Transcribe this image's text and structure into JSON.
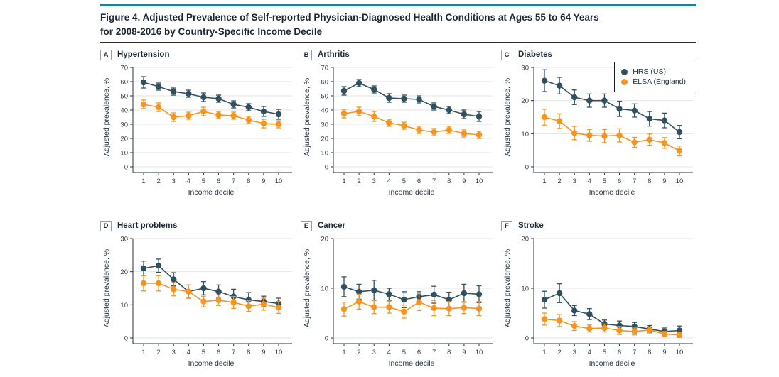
{
  "figure": {
    "title_line1": "Figure 4. Adjusted Prevalence of Self-reported Physician-Diagnosed Health Conditions at Ages 55 to 64 Years",
    "title_line2": "for 2008-2016 by Country-Specific Income Decile"
  },
  "colors": {
    "accent_bar": "#1b7e9e",
    "hrs": "#31505e",
    "elsa": "#f6941f",
    "gridline": "#e4e4e4",
    "axis": "#27323c"
  },
  "legend": {
    "items": [
      {
        "label": "HRS (US)",
        "color": "#31505e"
      },
      {
        "label": "ELSA (England)",
        "color": "#f6941f"
      }
    ]
  },
  "chart_data": [
    {
      "panel": "A",
      "type": "line",
      "title": "Hypertension",
      "xlabel": "Income decile",
      "ylabel": "Adjusted prevalence, %",
      "categories": [
        1,
        2,
        3,
        4,
        5,
        6,
        7,
        8,
        9,
        10
      ],
      "ylim": [
        0,
        70
      ],
      "ytick": 10,
      "grid": true,
      "series": [
        {
          "name": "HRS (US)",
          "color": "#31505e",
          "values": [
            59.5,
            56.5,
            53,
            51.5,
            49,
            48,
            44,
            42,
            39,
            37
          ],
          "errors": [
            4,
            2.5,
            2.5,
            2.5,
            3,
            2.5,
            2.5,
            2.5,
            3.5,
            3.5
          ]
        },
        {
          "name": "ELSA (England)",
          "color": "#f6941f",
          "values": [
            44,
            42,
            35,
            36,
            39,
            36.5,
            36,
            33,
            30.5,
            30
          ],
          "errors": [
            3,
            3,
            3,
            2.5,
            3,
            2.5,
            2.5,
            2.5,
            3,
            2.5
          ]
        }
      ]
    },
    {
      "panel": "B",
      "type": "line",
      "title": "Arthritis",
      "xlabel": "Income decile",
      "ylabel": "Adjusted prevalence, %",
      "categories": [
        1,
        2,
        3,
        4,
        5,
        6,
        7,
        8,
        9,
        10
      ],
      "ylim": [
        0,
        70
      ],
      "ytick": 10,
      "grid": true,
      "series": [
        {
          "name": "HRS (US)",
          "color": "#31505e",
          "values": [
            53.5,
            59,
            54.5,
            48.5,
            48,
            47.5,
            42.5,
            40,
            37,
            35.5
          ],
          "errors": [
            3,
            2.5,
            2.5,
            3,
            2.5,
            2.5,
            2.5,
            2.5,
            3,
            3.5
          ]
        },
        {
          "name": "ELSA (England)",
          "color": "#f6941f",
          "values": [
            37.5,
            39,
            35.5,
            31,
            29,
            26,
            24.5,
            26,
            23.5,
            22.5
          ],
          "errors": [
            3,
            3,
            3.5,
            2.5,
            2.5,
            2.5,
            2.5,
            2.5,
            2.5,
            2.5
          ]
        }
      ]
    },
    {
      "panel": "C",
      "type": "line",
      "title": "Diabetes",
      "xlabel": "Income decile",
      "ylabel": "Adjusted prevalence, %",
      "categories": [
        1,
        2,
        3,
        4,
        5,
        6,
        7,
        8,
        9,
        10
      ],
      "ylim": [
        0,
        30
      ],
      "ytick": 10,
      "grid": true,
      "legend_position": "top-right",
      "series": [
        {
          "name": "HRS (US)",
          "color": "#31505e",
          "values": [
            26,
            24.5,
            21,
            20,
            20,
            17.5,
            17,
            14.5,
            14,
            10.5
          ],
          "errors": [
            3.3,
            2.5,
            2.2,
            2,
            2,
            2.3,
            2,
            2.2,
            2.2,
            2
          ]
        },
        {
          "name": "ELSA (England)",
          "color": "#f6941f",
          "values": [
            15,
            13.8,
            10.2,
            9.5,
            9.3,
            9.5,
            7.4,
            8.2,
            7.2,
            4.8
          ],
          "errors": [
            2.4,
            2.2,
            2,
            1.8,
            2,
            2,
            1.5,
            1.7,
            1.6,
            1.5
          ]
        }
      ]
    },
    {
      "panel": "D",
      "type": "line",
      "title": "Heart problems",
      "xlabel": "Income decile",
      "ylabel": "Adjusted prevalence, %",
      "categories": [
        1,
        2,
        3,
        4,
        5,
        6,
        7,
        8,
        9,
        10
      ],
      "ylim": [
        0,
        30
      ],
      "ytick": 10,
      "grid": true,
      "series": [
        {
          "name": "HRS (US)",
          "color": "#31505e",
          "values": [
            21,
            21.8,
            17.7,
            14,
            15,
            14,
            12.5,
            11.5,
            11,
            10.4
          ],
          "errors": [
            2.2,
            2,
            2,
            2,
            2,
            2,
            2.2,
            2.2,
            1.6,
            1.6
          ]
        },
        {
          "name": "ELSA (England)",
          "color": "#f6941f",
          "values": [
            16.5,
            16.5,
            14.7,
            14,
            11,
            11.4,
            10.7,
            9.6,
            10.2,
            9.2
          ],
          "errors": [
            2.3,
            2.3,
            2,
            2,
            1.6,
            1.6,
            1.8,
            1.6,
            1.8,
            1.8
          ]
        }
      ]
    },
    {
      "panel": "E",
      "type": "line",
      "title": "Cancer",
      "xlabel": "Income decile",
      "ylabel": "Adjusted prevalence, %",
      "categories": [
        1,
        2,
        3,
        4,
        5,
        6,
        7,
        8,
        9,
        10
      ],
      "ylim": [
        0,
        20
      ],
      "ytick": 10,
      "grid": true,
      "series": [
        {
          "name": "HRS (US)",
          "color": "#31505e",
          "values": [
            10.3,
            9.3,
            9.6,
            8.8,
            7.7,
            8.3,
            8.7,
            7.7,
            9,
            8.8
          ],
          "errors": [
            2,
            1.5,
            2,
            1.2,
            1.6,
            1,
            1.7,
            1.5,
            1.8,
            1.7
          ]
        },
        {
          "name": "ELSA (England)",
          "color": "#f6941f",
          "values": [
            5.8,
            7.3,
            6.2,
            6.2,
            5.3,
            7.2,
            6,
            5.9,
            6.1,
            5.9
          ],
          "errors": [
            1.4,
            1.5,
            1.3,
            1.2,
            1.3,
            1.7,
            1.5,
            1.4,
            1.2,
            1.4
          ]
        }
      ]
    },
    {
      "panel": "F",
      "type": "line",
      "title": "Stroke",
      "xlabel": "Income decile",
      "ylabel": "Adjusted prevalence, %",
      "categories": [
        1,
        2,
        3,
        4,
        5,
        6,
        7,
        8,
        9,
        10
      ],
      "ylim": [
        0,
        20
      ],
      "ytick": 10,
      "grid": true,
      "series": [
        {
          "name": "HRS (US)",
          "color": "#31505e",
          "values": [
            7.7,
            9,
            5.5,
            4.8,
            2.8,
            2.5,
            2.3,
            1.8,
            1.3,
            1.5
          ],
          "errors": [
            1.7,
            1.9,
            1,
            1.1,
            0.8,
            0.9,
            0.8,
            0.7,
            0.7,
            0.9
          ]
        },
        {
          "name": "ELSA (England)",
          "color": "#f6941f",
          "values": [
            3.8,
            3.5,
            2.4,
            1.9,
            2,
            1.5,
            1.3,
            1.6,
            0.8,
            0.6
          ],
          "errors": [
            1.2,
            1.2,
            0.9,
            0.7,
            0.8,
            0.8,
            0.7,
            0.6,
            0.5,
            0.5
          ]
        }
      ]
    }
  ]
}
